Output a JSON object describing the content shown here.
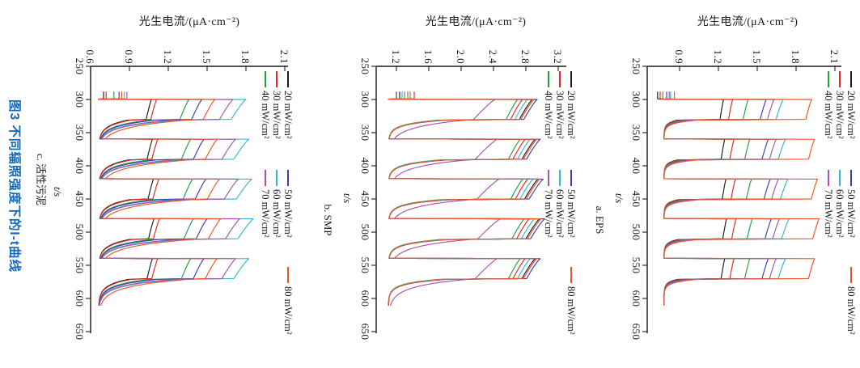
{
  "figure": {
    "caption": "图3  不同辐照强度下的I-t曲线",
    "caption_color": "#1668b8"
  },
  "chart_data": {
    "type": "line",
    "orientation": "whole figure rotated 90° clockwise: t axis runs top→bottom, photocurrent axis runs left→right",
    "grid": false,
    "legend_position": "right side of each panel, rotated text",
    "t_axis": {
      "label": "t/s",
      "ticks": [
        250,
        300,
        350,
        400,
        450,
        500,
        550,
        600,
        650
      ],
      "range": [
        250,
        650
      ]
    },
    "illumination_cycles": {
      "pre_start_s": 288,
      "first_light_on_s": 300,
      "period_s": 60,
      "on_duration_s": 30,
      "record_end_s": 611
    },
    "charts": [
      {
        "id": "c",
        "sublabel": "c. 活性污泥",
        "i_axis": {
          "label": "光生电流/(μA·cm⁻²)",
          "ticks": [
            0.6,
            0.9,
            1.2,
            1.5,
            1.8,
            2.1
          ],
          "range": [
            0.6,
            2.125
          ]
        },
        "baseline": 0.66,
        "response": {
          "sag": 0.1,
          "drop_keep": 0.55,
          "tau_s": 9
        },
        "series": [
          {
            "label": "20 mW/cm²",
            "color": "#1a1a1a",
            "peak": 1.07,
            "pre": 0.7
          },
          {
            "label": "30 mW/cm²",
            "color": "#e8231f",
            "peak": 1.11,
            "pre": 0.72
          },
          {
            "label": "40 mW/cm²",
            "color": "#22a03c",
            "peak": 1.36,
            "pre": 0.78
          },
          {
            "label": "50 mW/cm²",
            "color": "#3c3cb4",
            "peak": 1.46,
            "pre": 0.82
          },
          {
            "label": "60 mW/cm²",
            "color": "#2fb9d4",
            "peak": 1.8,
            "pre": 0.86
          },
          {
            "label": "70 mW/cm²",
            "color": "#a653ae",
            "peak": 1.7,
            "pre": 0.88
          },
          {
            "label": "80 mW/cm²",
            "color": "#f25223",
            "peak": 1.56,
            "pre": 0.84,
            "drop_keep": 0.75,
            "tau_s": 11
          }
        ]
      },
      {
        "id": "b",
        "sublabel": "b. SMP",
        "i_axis": {
          "label": "光生电流/(μA·cm⁻²)",
          "ticks": [
            1.2,
            1.6,
            2.0,
            2.4,
            2.8,
            3.2
          ],
          "range": [
            0.95,
            3.3
          ]
        },
        "baseline": 1.1,
        "response": {
          "sag": 0.09,
          "drop_keep": 0.38,
          "tau_s": 6.5
        },
        "series": [
          {
            "label": "20 mW/cm²",
            "color": "#1a1a1a",
            "peak": 2.88,
            "pre": 1.24
          },
          {
            "label": "30 mW/cm²",
            "color": "#e8231f",
            "peak": 2.76,
            "pre": 1.42
          },
          {
            "label": "40 mW/cm²",
            "color": "#22a03c",
            "peak": 2.7,
            "pre": 1.34
          },
          {
            "label": "50 mW/cm²",
            "color": "#3c3cb4",
            "peak": 2.94,
            "pre": 1.2
          },
          {
            "label": "60 mW/cm²",
            "color": "#2fb9d4",
            "peak": 2.82,
            "pre": 1.27
          },
          {
            "label": "70 mW/cm²",
            "color": "#a653ae",
            "peak": 2.42,
            "pre": 1.3,
            "sag": 0.2,
            "drop_keep": 0.72,
            "tau_s": 11
          },
          {
            "label": "80 mW/cm²",
            "color": "#f25223",
            "peak": 2.9,
            "pre": 1.37
          }
        ]
      },
      {
        "id": "a",
        "sublabel": "a. EPS",
        "i_axis": {
          "label": "光生电流/(μA·cm⁻²)",
          "ticks": [
            0.9,
            1.2,
            1.5,
            1.8,
            2.1
          ],
          "range": [
            0.65,
            2.15
          ]
        },
        "baseline": 0.78,
        "response": {
          "sag": 0.06,
          "drop_keep": 0.22,
          "tau_s": 4.5
        },
        "series": [
          {
            "label": "20 mW/cm²",
            "color": "#1a1a1a",
            "peak": 1.24,
            "pre": 0.73
          },
          {
            "label": "30 mW/cm²",
            "color": "#e8231f",
            "peak": 1.31,
            "pre": 0.75
          },
          {
            "label": "40 mW/cm²",
            "color": "#22a03c",
            "peak": 1.43,
            "pre": 0.77
          },
          {
            "label": "50 mW/cm²",
            "color": "#3c3cb4",
            "peak": 1.57,
            "pre": 0.8
          },
          {
            "label": "60 mW/cm²",
            "color": "#2fb9d4",
            "peak": 1.7,
            "pre": 0.83
          },
          {
            "label": "70 mW/cm²",
            "color": "#a653ae",
            "peak": 1.63,
            "pre": 0.82
          },
          {
            "label": "80 mW/cm²",
            "color": "#f25223",
            "peak": 1.92,
            "pre": 0.86,
            "sag": 0.04
          }
        ]
      }
    ]
  }
}
